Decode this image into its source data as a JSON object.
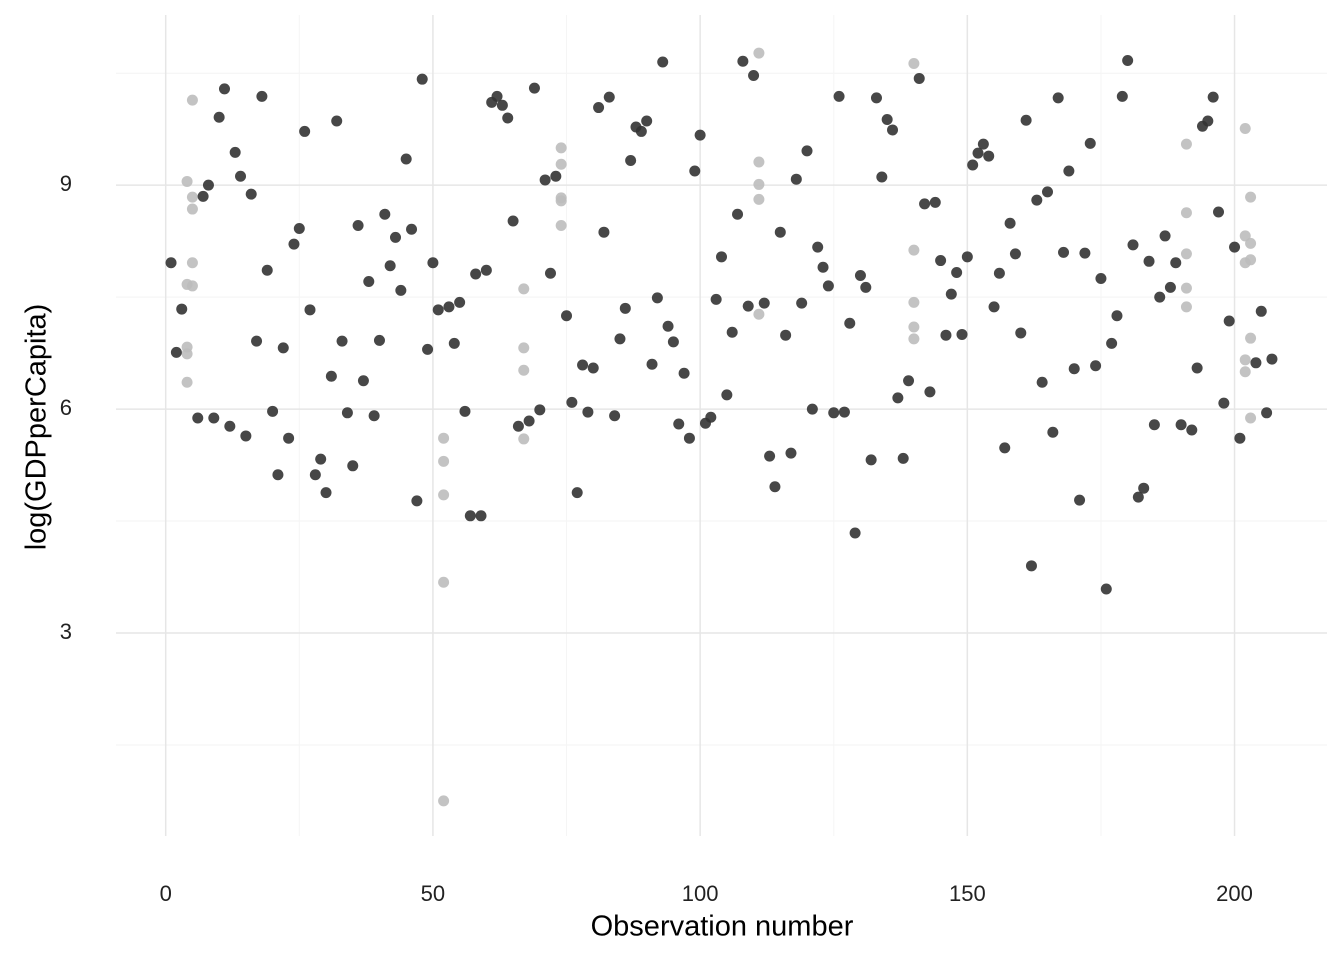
{
  "chart_data": {
    "type": "scatter",
    "x_label": "Observation number",
    "y_label": "log(GDPperCapita)",
    "xlim": [
      -9.3,
      217.3
    ],
    "ylim": [
      0.28,
      11.28
    ],
    "xticks": [
      0,
      50,
      100,
      150,
      200
    ],
    "yticks": [
      3,
      6,
      9
    ],
    "yminor": [
      1.5,
      4.5,
      7.5,
      10.5
    ],
    "xminor": [
      25,
      75,
      125,
      175
    ],
    "grid": true,
    "series": [
      {
        "color": "#333333",
        "x": [
          1,
          2,
          3,
          6,
          7,
          8,
          9,
          10,
          11,
          12,
          13,
          14,
          15,
          16,
          17,
          18,
          19,
          20,
          21,
          22,
          23,
          24,
          25,
          26,
          27,
          28,
          29,
          30,
          31,
          32,
          33,
          34,
          35,
          36,
          37,
          38,
          39,
          40,
          41,
          42,
          43,
          44,
          45,
          46,
          47,
          48,
          49,
          50,
          51,
          53,
          54,
          55,
          56,
          57,
          58,
          59,
          60,
          61,
          62,
          63,
          64,
          65,
          66,
          68,
          69,
          70,
          71,
          72,
          73,
          75,
          76,
          77,
          78,
          79,
          80,
          81,
          82,
          83,
          84,
          85,
          86,
          87,
          88,
          89,
          90,
          91,
          92,
          93,
          94,
          95,
          96,
          97,
          98,
          99,
          100,
          101,
          102,
          103,
          104,
          105,
          106,
          107,
          108,
          109,
          110,
          112,
          113,
          114,
          115,
          116,
          117,
          118,
          119,
          120,
          121,
          122,
          123,
          124,
          125,
          126,
          127,
          128,
          129,
          130,
          131,
          132,
          133,
          134,
          135,
          136,
          137,
          138,
          139,
          141,
          142,
          143,
          144,
          145,
          146,
          147,
          148,
          149,
          150,
          151,
          152,
          153,
          154,
          155,
          156,
          157,
          158,
          159,
          160,
          161,
          162,
          163,
          164,
          165,
          166,
          167,
          168,
          169,
          170,
          171,
          172,
          173,
          174,
          175,
          176,
          177,
          178,
          179,
          180,
          181,
          182,
          183,
          184,
          185,
          186,
          187,
          188,
          189,
          190,
          192,
          193,
          194,
          195,
          196,
          197,
          198,
          199,
          200,
          201,
          204,
          205,
          206,
          207
        ],
        "values": [
          7.96,
          6.76,
          7.34,
          5.88,
          8.85,
          9.0,
          5.88,
          9.91,
          10.29,
          5.77,
          9.44,
          9.12,
          5.64,
          8.88,
          6.91,
          10.19,
          7.86,
          5.97,
          5.12,
          6.82,
          5.61,
          8.21,
          8.42,
          9.72,
          7.33,
          5.12,
          5.33,
          4.88,
          6.44,
          9.86,
          6.91,
          5.95,
          5.24,
          8.46,
          6.38,
          7.71,
          5.91,
          6.92,
          8.61,
          7.92,
          8.3,
          7.59,
          9.35,
          8.41,
          4.77,
          10.42,
          6.8,
          7.96,
          7.33,
          7.37,
          6.88,
          7.43,
          5.97,
          4.57,
          7.81,
          4.57,
          7.86,
          10.11,
          10.19,
          10.07,
          9.9,
          8.52,
          5.77,
          5.84,
          10.3,
          5.99,
          9.07,
          7.82,
          9.12,
          7.25,
          6.09,
          4.88,
          6.59,
          5.96,
          6.55,
          10.04,
          8.37,
          10.18,
          5.91,
          6.94,
          7.35,
          9.33,
          9.78,
          9.72,
          9.86,
          6.6,
          7.49,
          10.65,
          7.11,
          6.9,
          5.8,
          6.48,
          5.61,
          9.19,
          9.67,
          5.81,
          5.89,
          7.47,
          8.04,
          6.19,
          7.03,
          8.61,
          10.66,
          7.38,
          10.47,
          7.42,
          5.37,
          4.96,
          8.37,
          6.99,
          5.41,
          9.08,
          7.42,
          9.46,
          6.0,
          8.17,
          7.9,
          7.65,
          5.95,
          10.19,
          5.96,
          7.15,
          4.34,
          7.79,
          7.63,
          5.32,
          10.17,
          9.11,
          9.88,
          9.74,
          6.15,
          5.34,
          6.38,
          10.43,
          8.75,
          6.23,
          8.77,
          7.99,
          6.99,
          7.54,
          7.83,
          7.0,
          8.04,
          9.27,
          9.43,
          9.55,
          9.39,
          7.37,
          7.82,
          5.48,
          8.49,
          8.08,
          7.02,
          9.87,
          3.9,
          8.8,
          6.36,
          8.91,
          5.69,
          10.17,
          8.1,
          9.19,
          6.54,
          4.78,
          8.09,
          9.56,
          6.58,
          7.75,
          3.59,
          6.88,
          7.25,
          10.19,
          10.67,
          8.2,
          4.82,
          4.94,
          7.98,
          5.79,
          7.5,
          8.32,
          7.63,
          7.96,
          5.79,
          5.72,
          6.55,
          9.79,
          9.86,
          10.18,
          8.64,
          6.08,
          7.18,
          8.17,
          5.61,
          6.62,
          7.31,
          5.95,
          6.67
        ]
      },
      {
        "color": "#bdbdbd",
        "x": [
          4,
          4,
          4,
          4,
          4,
          5,
          5,
          5,
          5,
          5,
          52,
          52,
          52,
          52,
          52,
          67,
          67,
          67,
          67,
          74,
          74,
          74,
          74,
          74,
          111,
          111,
          111,
          111,
          111,
          140,
          140,
          140,
          140,
          140,
          191,
          191,
          191,
          191,
          191,
          202,
          202,
          202,
          202,
          202,
          203,
          203,
          203,
          203,
          203
        ],
        "values": [
          9.05,
          7.67,
          6.83,
          6.74,
          6.36,
          10.14,
          8.84,
          8.68,
          7.96,
          7.65,
          5.61,
          5.3,
          4.85,
          3.68,
          0.75,
          7.61,
          6.82,
          6.52,
          5.6,
          9.5,
          9.28,
          8.83,
          8.79,
          8.46,
          10.77,
          9.31,
          9.01,
          8.81,
          7.27,
          10.63,
          8.13,
          7.43,
          7.1,
          6.94,
          9.55,
          8.63,
          8.08,
          7.62,
          7.37,
          9.76,
          8.32,
          7.96,
          6.66,
          6.5,
          8.84,
          8.22,
          8.0,
          6.95,
          5.88
        ]
      }
    ]
  }
}
